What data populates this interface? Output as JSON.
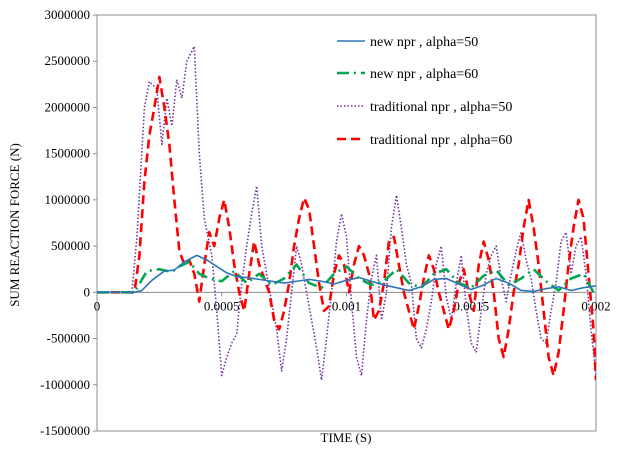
{
  "chart_data": {
    "type": "line",
    "title": "",
    "xlabel": "TIME (S)",
    "ylabel": "SUM REACTION FORCE (N)",
    "xlim": [
      0,
      0.002
    ],
    "ylim": [
      -1500000,
      3000000
    ],
    "x_ticks": [
      0,
      0.0005,
      0.001,
      0.0015,
      0.002
    ],
    "x_tick_labels": [
      "0",
      "0.0005",
      "0.001",
      "0.0015",
      "0.002"
    ],
    "y_ticks": [
      -1500000,
      -1000000,
      -500000,
      0,
      500000,
      1000000,
      1500000,
      2000000,
      2500000,
      3000000
    ],
    "y_tick_labels": [
      "-1500000",
      "-1000000",
      "-500000",
      "0",
      "500000",
      "1000000",
      "1500000",
      "2000000",
      "2500000",
      "3000000"
    ],
    "grid": false,
    "legend_position": "top-right",
    "series": [
      {
        "name": "new npr , alpha=50",
        "color": "#2E75B6",
        "style": "solid",
        "points": [
          [
            0,
            0
          ],
          [
            0.00015,
            0
          ],
          [
            0.00018,
            20000
          ],
          [
            0.00022,
            130000
          ],
          [
            0.00027,
            230000
          ],
          [
            0.00031,
            240000
          ],
          [
            0.00035,
            330000
          ],
          [
            0.0004,
            400000
          ],
          [
            0.00044,
            350000
          ],
          [
            0.00048,
            280000
          ],
          [
            0.00052,
            210000
          ],
          [
            0.00056,
            170000
          ],
          [
            0.0006,
            160000
          ],
          [
            0.00065,
            140000
          ],
          [
            0.0007,
            120000
          ],
          [
            0.00075,
            100000
          ],
          [
            0.0008,
            120000
          ],
          [
            0.00085,
            140000
          ],
          [
            0.0009,
            120000
          ],
          [
            0.00095,
            90000
          ],
          [
            0.001,
            130000
          ],
          [
            0.00105,
            160000
          ],
          [
            0.0011,
            120000
          ],
          [
            0.00115,
            80000
          ],
          [
            0.0012,
            50000
          ],
          [
            0.00125,
            20000
          ],
          [
            0.0013,
            60000
          ],
          [
            0.00135,
            140000
          ],
          [
            0.0014,
            150000
          ],
          [
            0.00145,
            90000
          ],
          [
            0.0015,
            30000
          ],
          [
            0.00155,
            80000
          ],
          [
            0.0016,
            150000
          ],
          [
            0.00165,
            100000
          ],
          [
            0.0017,
            20000
          ],
          [
            0.00175,
            10000
          ],
          [
            0.0018,
            40000
          ],
          [
            0.00185,
            60000
          ],
          [
            0.0019,
            20000
          ],
          [
            0.00195,
            50000
          ],
          [
            0.002,
            70000
          ]
        ]
      },
      {
        "name": "new npr , alpha=60",
        "color": "#00A651",
        "style": "long-dash-dot",
        "points": [
          [
            0,
            0
          ],
          [
            0.00015,
            0
          ],
          [
            0.0002,
            230000
          ],
          [
            0.00025,
            250000
          ],
          [
            0.0003,
            220000
          ],
          [
            0.00033,
            280000
          ],
          [
            0.00037,
            330000
          ],
          [
            0.00041,
            200000
          ],
          [
            0.00045,
            150000
          ],
          [
            0.0005,
            120000
          ],
          [
            0.00055,
            230000
          ],
          [
            0.0006,
            100000
          ],
          [
            0.00065,
            200000
          ],
          [
            0.0007,
            80000
          ],
          [
            0.00075,
            150000
          ],
          [
            0.0008,
            300000
          ],
          [
            0.00085,
            100000
          ],
          [
            0.0009,
            50000
          ],
          [
            0.00095,
            200000
          ],
          [
            0.001,
            280000
          ],
          [
            0.00105,
            150000
          ],
          [
            0.0011,
            80000
          ],
          [
            0.00115,
            120000
          ],
          [
            0.0012,
            250000
          ],
          [
            0.00125,
            100000
          ],
          [
            0.0013,
            50000
          ],
          [
            0.00135,
            200000
          ],
          [
            0.0014,
            250000
          ],
          [
            0.00145,
            100000
          ],
          [
            0.0015,
            50000
          ],
          [
            0.00155,
            180000
          ],
          [
            0.0016,
            240000
          ],
          [
            0.00165,
            80000
          ],
          [
            0.0017,
            150000
          ],
          [
            0.00175,
            250000
          ],
          [
            0.0018,
            120000
          ],
          [
            0.00185,
            20000
          ],
          [
            0.0019,
            150000
          ],
          [
            0.00195,
            200000
          ],
          [
            0.002,
            -50000
          ]
        ]
      },
      {
        "name": "traditional npr , alpha=50",
        "color": "#7030A0",
        "style": "dotted",
        "points": [
          [
            0,
            0
          ],
          [
            0.00014,
            0
          ],
          [
            0.00016,
            600000
          ],
          [
            0.00019,
            2000000
          ],
          [
            0.00021,
            2280000
          ],
          [
            0.00024,
            2200000
          ],
          [
            0.00026,
            1600000
          ],
          [
            0.00028,
            2100000
          ],
          [
            0.0003,
            1800000
          ],
          [
            0.00032,
            2300000
          ],
          [
            0.00034,
            2100000
          ],
          [
            0.00036,
            2500000
          ],
          [
            0.00039,
            2660000
          ],
          [
            0.00041,
            1500000
          ],
          [
            0.00043,
            800000
          ],
          [
            0.00046,
            400000
          ],
          [
            0.00048,
            -200000
          ],
          [
            0.0005,
            -900000
          ],
          [
            0.00052,
            -700000
          ],
          [
            0.00054,
            -550000
          ],
          [
            0.00056,
            -450000
          ],
          [
            0.00058,
            100000
          ],
          [
            0.0006,
            500000
          ],
          [
            0.00062,
            850000
          ],
          [
            0.00064,
            1150000
          ],
          [
            0.00066,
            500000
          ],
          [
            0.00068,
            200000
          ],
          [
            0.0007,
            -100000
          ],
          [
            0.00072,
            -400000
          ],
          [
            0.00074,
            -850000
          ],
          [
            0.00076,
            -500000
          ],
          [
            0.00078,
            0
          ],
          [
            0.0008,
            500000
          ],
          [
            0.00082,
            300000
          ],
          [
            0.00084,
            0
          ],
          [
            0.00086,
            -300000
          ],
          [
            0.00088,
            -600000
          ],
          [
            0.0009,
            -950000
          ],
          [
            0.00092,
            -500000
          ],
          [
            0.00094,
            0
          ],
          [
            0.00096,
            550000
          ],
          [
            0.00098,
            850000
          ],
          [
            0.001,
            600000
          ],
          [
            0.00102,
            -100000
          ],
          [
            0.00104,
            -700000
          ],
          [
            0.00106,
            -900000
          ],
          [
            0.00108,
            -300000
          ],
          [
            0.0011,
            150000
          ],
          [
            0.00112,
            400000
          ],
          [
            0.00114,
            -300000
          ],
          [
            0.00116,
            0
          ],
          [
            0.00118,
            700000
          ],
          [
            0.0012,
            1050000
          ],
          [
            0.00122,
            700000
          ],
          [
            0.00124,
            300000
          ],
          [
            0.00126,
            100000
          ],
          [
            0.00128,
            -500000
          ],
          [
            0.0013,
            -600000
          ],
          [
            0.00132,
            -400000
          ],
          [
            0.00134,
            -100000
          ],
          [
            0.00136,
            300000
          ],
          [
            0.00138,
            500000
          ],
          [
            0.0014,
            -50000
          ],
          [
            0.00142,
            -300000
          ],
          [
            0.00144,
            100000
          ],
          [
            0.00146,
            400000
          ],
          [
            0.00148,
            -150000
          ],
          [
            0.0015,
            -550000
          ],
          [
            0.00152,
            -650000
          ],
          [
            0.00154,
            -200000
          ],
          [
            0.00156,
            200000
          ],
          [
            0.00158,
            400000
          ],
          [
            0.0016,
            500000
          ],
          [
            0.00162,
            150000
          ],
          [
            0.00164,
            -100000
          ],
          [
            0.00166,
            200000
          ],
          [
            0.00168,
            450000
          ],
          [
            0.0017,
            650000
          ],
          [
            0.00172,
            350000
          ],
          [
            0.00174,
            150000
          ],
          [
            0.00176,
            -200000
          ],
          [
            0.00178,
            -500000
          ],
          [
            0.0018,
            -550000
          ],
          [
            0.00182,
            -200000
          ],
          [
            0.00184,
            100000
          ],
          [
            0.00186,
            550000
          ],
          [
            0.00188,
            650000
          ],
          [
            0.0019,
            200000
          ],
          [
            0.00192,
            500000
          ],
          [
            0.00194,
            600000
          ],
          [
            0.00196,
            200000
          ],
          [
            0.00198,
            -400000
          ],
          [
            0.002,
            -900000
          ]
        ]
      },
      {
        "name": "traditional npr , alpha=60",
        "color": "#FF0000",
        "style": "dashed",
        "points": [
          [
            0,
            0
          ],
          [
            0.00015,
            0
          ],
          [
            0.00017,
            400000
          ],
          [
            0.00019,
            1200000
          ],
          [
            0.00021,
            1700000
          ],
          [
            0.00023,
            2000000
          ],
          [
            0.00025,
            2330000
          ],
          [
            0.00027,
            2000000
          ],
          [
            0.00029,
            1600000
          ],
          [
            0.00031,
            1000000
          ],
          [
            0.00033,
            450000
          ],
          [
            0.00035,
            300000
          ],
          [
            0.00037,
            350000
          ],
          [
            0.00039,
            200000
          ],
          [
            0.00041,
            -100000
          ],
          [
            0.00043,
            300000
          ],
          [
            0.00045,
            650000
          ],
          [
            0.00047,
            500000
          ],
          [
            0.00049,
            800000
          ],
          [
            0.00051,
            1000000
          ],
          [
            0.00053,
            700000
          ],
          [
            0.00055,
            300000
          ],
          [
            0.00057,
            0
          ],
          [
            0.00059,
            -200000
          ],
          [
            0.00061,
            200000
          ],
          [
            0.00063,
            550000
          ],
          [
            0.00065,
            300000
          ],
          [
            0.00067,
            150000
          ],
          [
            0.00069,
            0
          ],
          [
            0.00071,
            -300000
          ],
          [
            0.00073,
            -400000
          ],
          [
            0.00075,
            -200000
          ],
          [
            0.00077,
            100000
          ],
          [
            0.00079,
            500000
          ],
          [
            0.00081,
            800000
          ],
          [
            0.00083,
            1020000
          ],
          [
            0.00085,
            900000
          ],
          [
            0.00087,
            500000
          ],
          [
            0.00089,
            100000
          ],
          [
            0.00091,
            -200000
          ],
          [
            0.00093,
            -150000
          ],
          [
            0.00095,
            200000
          ],
          [
            0.00097,
            400000
          ],
          [
            0.00099,
            300000
          ],
          [
            0.00101,
            0
          ],
          [
            0.00103,
            300000
          ],
          [
            0.00105,
            500000
          ],
          [
            0.00107,
            400000
          ],
          [
            0.00109,
            200000
          ],
          [
            0.00111,
            -300000
          ],
          [
            0.00113,
            -200000
          ],
          [
            0.00115,
            100000
          ],
          [
            0.00117,
            550000
          ],
          [
            0.00119,
            600000
          ],
          [
            0.00121,
            300000
          ],
          [
            0.00123,
            0
          ],
          [
            0.00125,
            -200000
          ],
          [
            0.00127,
            -400000
          ],
          [
            0.00129,
            -150000
          ],
          [
            0.00131,
            150000
          ],
          [
            0.00133,
            400000
          ],
          [
            0.00135,
            250000
          ],
          [
            0.00137,
            0
          ],
          [
            0.00139,
            -200000
          ],
          [
            0.00141,
            -400000
          ],
          [
            0.00143,
            -200000
          ],
          [
            0.00145,
            100000
          ],
          [
            0.00147,
            250000
          ],
          [
            0.00149,
            0
          ],
          [
            0.00151,
            -200000
          ],
          [
            0.00153,
            300000
          ],
          [
            0.00155,
            550000
          ],
          [
            0.00157,
            350000
          ],
          [
            0.00159,
            0
          ],
          [
            0.00161,
            -500000
          ],
          [
            0.00163,
            -700000
          ],
          [
            0.00165,
            -400000
          ],
          [
            0.00167,
            0
          ],
          [
            0.00169,
            300000
          ],
          [
            0.00171,
            700000
          ],
          [
            0.00173,
            1000000
          ],
          [
            0.00175,
            700000
          ],
          [
            0.00177,
            300000
          ],
          [
            0.00179,
            -200000
          ],
          [
            0.00181,
            -700000
          ],
          [
            0.00183,
            -900000
          ],
          [
            0.00185,
            -650000
          ],
          [
            0.00187,
            -200000
          ],
          [
            0.00189,
            300000
          ],
          [
            0.00191,
            700000
          ],
          [
            0.00193,
            1000000
          ],
          [
            0.00195,
            800000
          ],
          [
            0.00197,
            200000
          ],
          [
            0.00199,
            -400000
          ],
          [
            0.002,
            -950000
          ]
        ]
      }
    ]
  }
}
